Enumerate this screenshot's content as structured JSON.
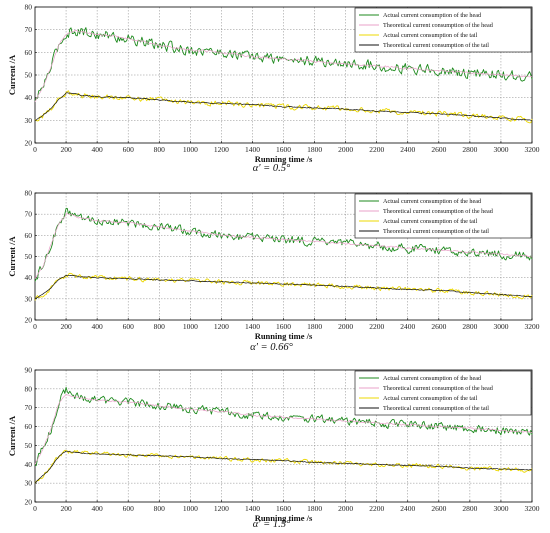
{
  "chart_data": [
    {
      "type": "line",
      "caption": "α' = 0.5°",
      "xlabel": "Running time  /s",
      "ylabel": "Current  /A",
      "xlim": [
        0,
        3200
      ],
      "ylim": [
        20,
        80
      ],
      "xticks": [
        0,
        200,
        400,
        600,
        800,
        1000,
        1200,
        1400,
        1600,
        1800,
        2000,
        2200,
        2400,
        2600,
        2800,
        3000,
        3200
      ],
      "yticks": [
        20,
        30,
        40,
        50,
        60,
        70,
        80
      ],
      "grid": true,
      "legend_position": "top-right",
      "series": [
        {
          "name": "Actual current consumption of the head",
          "color": "#1e8a1e",
          "noise": 3.2,
          "x": [
            0,
            50,
            100,
            150,
            200,
            250,
            300,
            400,
            500,
            600,
            800,
            1000,
            1200,
            1400,
            1600,
            1800,
            2000,
            2200,
            2400,
            2600,
            2800,
            3000,
            3200
          ],
          "y": [
            38,
            45,
            53,
            63,
            68,
            70,
            69,
            68,
            67,
            66,
            63,
            61,
            60,
            58,
            57,
            56,
            55,
            54,
            53,
            52,
            51,
            50,
            49
          ]
        },
        {
          "name": "Theoretical current consumption of the head",
          "color": "#e8a0c8",
          "noise": 0.6,
          "x": [
            0,
            50,
            100,
            150,
            200,
            250,
            300,
            400,
            500,
            600,
            800,
            1000,
            1200,
            1400,
            1600,
            1800,
            2000,
            2200,
            2400,
            2600,
            2800,
            3000,
            3200
          ],
          "y": [
            38,
            45,
            53,
            63,
            68,
            69.5,
            69,
            68,
            67,
            66,
            63,
            61,
            60,
            58,
            57,
            56,
            55,
            54,
            53,
            52,
            51,
            50,
            49
          ]
        },
        {
          "name": "Actual current consumption of the tail",
          "color": "#ecd800",
          "noise": 1.6,
          "x": [
            0,
            50,
            100,
            150,
            200,
            250,
            300,
            400,
            600,
            800,
            1000,
            1200,
            1400,
            1600,
            1800,
            2000,
            2200,
            2400,
            2600,
            2800,
            3000,
            3200
          ],
          "y": [
            30,
            32,
            35,
            39,
            42,
            42,
            41,
            40.5,
            40,
            39,
            38,
            37.5,
            37,
            36,
            35.5,
            35,
            34,
            33.5,
            33,
            32,
            31,
            30
          ]
        },
        {
          "name": "Theoretical current consumption of the tail",
          "color": "#111111",
          "noise": 0.3,
          "x": [
            0,
            50,
            100,
            150,
            200,
            250,
            300,
            400,
            600,
            800,
            1000,
            1200,
            1400,
            1600,
            1800,
            2000,
            2200,
            2400,
            2600,
            2800,
            3000,
            3200
          ],
          "y": [
            30,
            32,
            35,
            39,
            42,
            42,
            41,
            40.5,
            40,
            39,
            38,
            37.5,
            37,
            36,
            35.5,
            35,
            34,
            33.5,
            33,
            32,
            31,
            30
          ]
        }
      ]
    },
    {
      "type": "line",
      "caption": "α' = 0.66°",
      "xlabel": "Running time  /s",
      "ylabel": "Current  /A",
      "xlim": [
        0,
        3200
      ],
      "ylim": [
        20,
        80
      ],
      "xticks": [
        0,
        200,
        400,
        600,
        800,
        1000,
        1200,
        1400,
        1600,
        1800,
        2000,
        2200,
        2400,
        2600,
        2800,
        3000,
        3200
      ],
      "yticks": [
        20,
        30,
        40,
        50,
        60,
        70,
        80
      ],
      "grid": true,
      "legend_position": "top-right",
      "series": [
        {
          "name": "Actual current consumption of the head",
          "color": "#1e8a1e",
          "noise": 2.8,
          "x": [
            0,
            50,
            100,
            150,
            200,
            250,
            300,
            400,
            600,
            800,
            1000,
            1200,
            1400,
            1600,
            1800,
            2000,
            2200,
            2400,
            2600,
            2800,
            3000,
            3200
          ],
          "y": [
            40,
            45,
            55,
            65,
            71,
            70,
            68,
            67,
            66,
            64,
            62,
            60,
            59,
            58,
            57,
            56,
            55,
            54,
            53,
            52,
            51,
            50
          ]
        },
        {
          "name": "Theoretical current consumption of the head",
          "color": "#e8a0c8",
          "noise": 0.6,
          "x": [
            0,
            50,
            100,
            150,
            200,
            250,
            300,
            400,
            600,
            800,
            1000,
            1200,
            1400,
            1600,
            1800,
            2000,
            2200,
            2400,
            2600,
            2800,
            3000,
            3200
          ],
          "y": [
            40,
            45,
            55,
            65,
            70,
            69.5,
            68,
            67,
            66,
            64,
            62,
            60,
            59,
            58,
            57,
            56,
            55,
            54,
            53,
            52,
            51,
            50
          ]
        },
        {
          "name": "Actual current consumption of the tail",
          "color": "#ecd800",
          "noise": 1.5,
          "x": [
            0,
            50,
            100,
            150,
            200,
            250,
            300,
            400,
            600,
            800,
            1000,
            1200,
            1400,
            1600,
            1800,
            2000,
            2200,
            2400,
            2600,
            2800,
            3000,
            3200
          ],
          "y": [
            30,
            32,
            35,
            39,
            41,
            41,
            40.5,
            40,
            39.5,
            39,
            38.5,
            38,
            37.5,
            37,
            36.5,
            36,
            35,
            34.5,
            34,
            33,
            32,
            31
          ]
        },
        {
          "name": "Theoretical current consumption of the tail",
          "color": "#111111",
          "noise": 0.3,
          "x": [
            0,
            50,
            100,
            150,
            200,
            250,
            300,
            400,
            600,
            800,
            1000,
            1200,
            1400,
            1600,
            1800,
            2000,
            2200,
            2400,
            2600,
            2800,
            3000,
            3200
          ],
          "y": [
            30,
            32,
            35,
            39,
            41,
            41,
            40.5,
            40,
            39.5,
            39,
            38.5,
            38,
            37.5,
            37,
            36.5,
            36,
            35,
            34.5,
            34,
            33,
            32,
            31
          ]
        }
      ]
    },
    {
      "type": "line",
      "caption": "α' = 1.5°",
      "xlabel": "Running time  /s",
      "ylabel": "Current  /A",
      "xlim": [
        0,
        3200
      ],
      "ylim": [
        20,
        90
      ],
      "xticks": [
        0,
        200,
        400,
        600,
        800,
        1000,
        1200,
        1400,
        1600,
        1800,
        2000,
        2200,
        2400,
        2600,
        2800,
        3000,
        3200
      ],
      "yticks": [
        20,
        30,
        40,
        50,
        60,
        70,
        80,
        90
      ],
      "grid": true,
      "legend_position": "top-right",
      "series": [
        {
          "name": "Actual current consumption of the head",
          "color": "#1e8a1e",
          "noise": 3.0,
          "x": [
            0,
            50,
            100,
            150,
            200,
            250,
            300,
            400,
            600,
            800,
            1000,
            1200,
            1400,
            1600,
            1800,
            2000,
            2200,
            2400,
            2600,
            2800,
            3000,
            3200
          ],
          "y": [
            40,
            48,
            58,
            72,
            80,
            77,
            75,
            74,
            73,
            71,
            69,
            68,
            66,
            65,
            64,
            63,
            62,
            61,
            60,
            59,
            58,
            57
          ]
        },
        {
          "name": "Theoretical current consumption of the head",
          "color": "#e8a0c8",
          "noise": 0.6,
          "x": [
            0,
            50,
            100,
            150,
            200,
            250,
            300,
            400,
            600,
            800,
            1000,
            1200,
            1400,
            1600,
            1800,
            2000,
            2200,
            2400,
            2600,
            2800,
            3000,
            3200
          ],
          "y": [
            40,
            48,
            58,
            72,
            77,
            76,
            75,
            74,
            73,
            71,
            69,
            68,
            66,
            65,
            64,
            63,
            62,
            61,
            60,
            59,
            58,
            57
          ]
        },
        {
          "name": "Actual current consumption of the tail",
          "color": "#ecd800",
          "noise": 1.6,
          "x": [
            0,
            50,
            100,
            150,
            200,
            250,
            300,
            400,
            600,
            800,
            1000,
            1200,
            1400,
            1600,
            1800,
            2000,
            2200,
            2400,
            2600,
            2800,
            3000,
            3200
          ],
          "y": [
            30,
            34,
            38,
            44,
            47,
            46.5,
            46,
            45.5,
            45,
            44.5,
            44,
            43,
            42.5,
            42,
            41,
            40.5,
            40,
            39.5,
            39,
            38,
            37.5,
            37
          ]
        },
        {
          "name": "Theoretical current consumption of the tail",
          "color": "#111111",
          "noise": 0.3,
          "x": [
            0,
            50,
            100,
            150,
            200,
            250,
            300,
            400,
            600,
            800,
            1000,
            1200,
            1400,
            1600,
            1800,
            2000,
            2200,
            2400,
            2600,
            2800,
            3000,
            3200
          ],
          "y": [
            30,
            34,
            38,
            44,
            47,
            46.5,
            46,
            45.5,
            45,
            44.5,
            44,
            43,
            42.5,
            42,
            41,
            40.5,
            40,
            39.5,
            39,
            38,
            37.5,
            37
          ]
        }
      ]
    }
  ]
}
